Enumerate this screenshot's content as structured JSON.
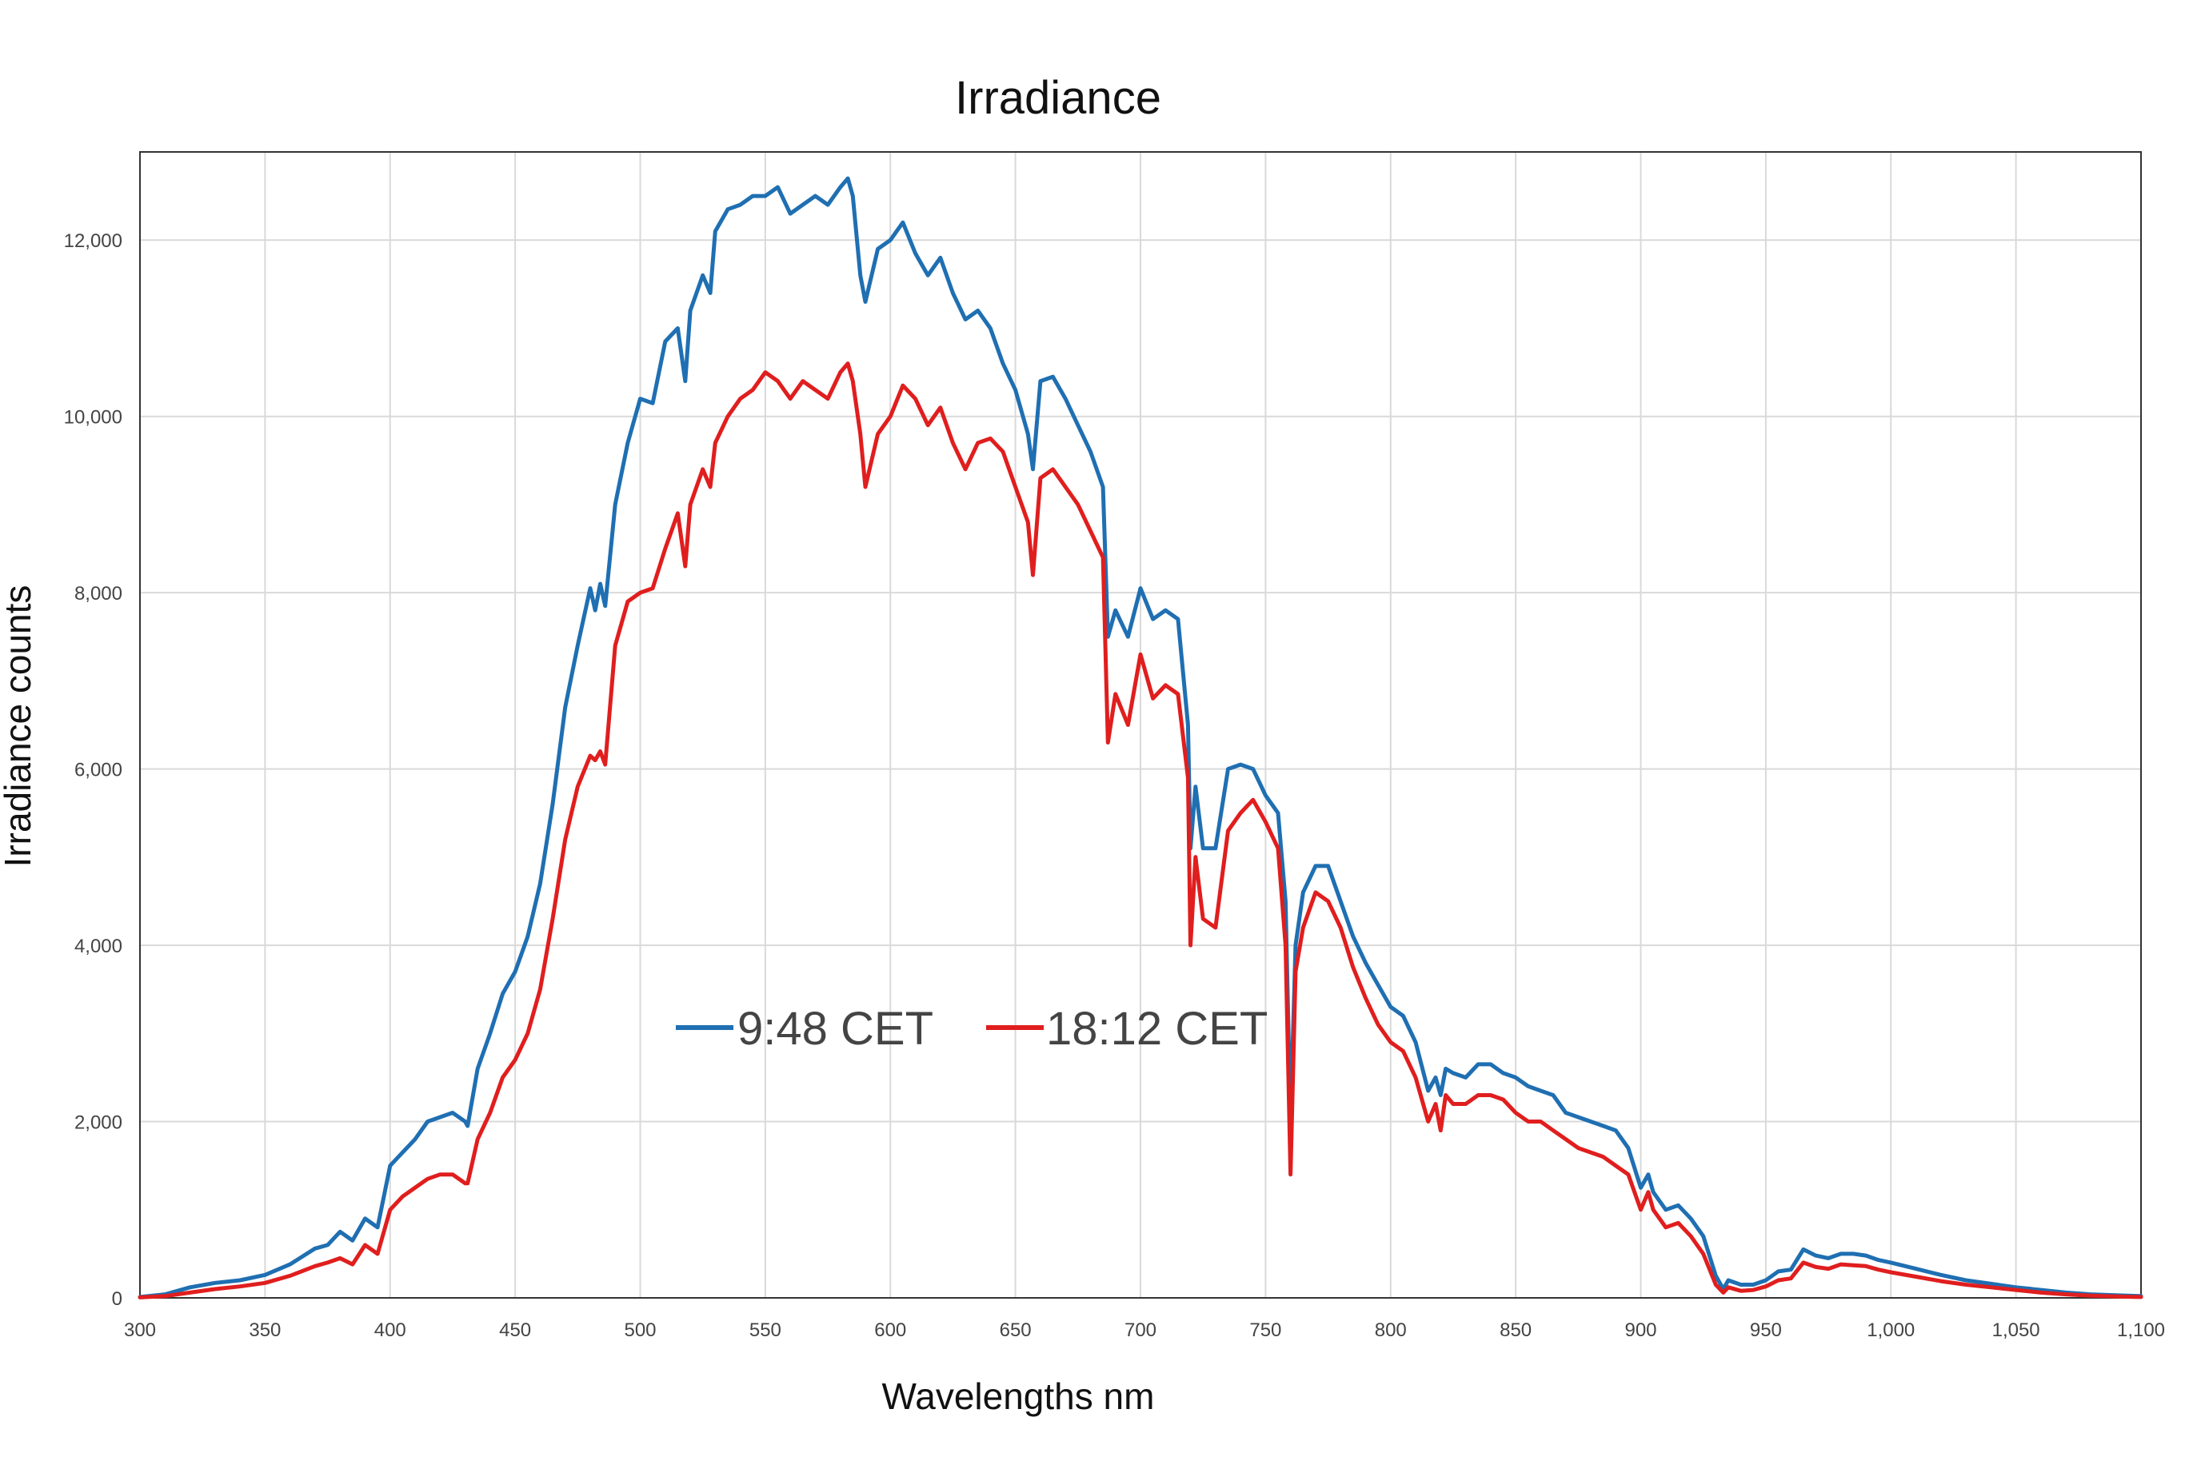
{
  "chart_data": {
    "type": "line",
    "title": "Irradiance",
    "xlabel": "Wavelengths nm",
    "ylabel": "Irradiance counts",
    "xlim": [
      300,
      1100
    ],
    "ylim": [
      0,
      13000
    ],
    "grid": true,
    "legend_placement": "center",
    "x_tick_labels": [
      "300",
      "350",
      "400",
      "450",
      "500",
      "550",
      "600",
      "650",
      "700",
      "750",
      "800",
      "850",
      "900",
      "950",
      "1,000",
      "1,050",
      "1,100"
    ],
    "y_tick_labels": [
      "0",
      "2,000",
      "4,000",
      "6,000",
      "8,000",
      "10,000",
      "12,000"
    ],
    "x": [
      300,
      310,
      320,
      330,
      340,
      350,
      360,
      370,
      375,
      380,
      385,
      390,
      395,
      400,
      405,
      410,
      415,
      420,
      425,
      430,
      431,
      435,
      440,
      445,
      450,
      455,
      460,
      465,
      470,
      475,
      480,
      482,
      484,
      486,
      490,
      495,
      500,
      505,
      510,
      515,
      518,
      520,
      525,
      528,
      530,
      535,
      540,
      545,
      550,
      555,
      560,
      565,
      570,
      575,
      580,
      583,
      585,
      588,
      590,
      595,
      600,
      605,
      610,
      615,
      620,
      625,
      630,
      635,
      640,
      645,
      650,
      655,
      657,
      660,
      665,
      670,
      675,
      680,
      685,
      687,
      690,
      695,
      700,
      705,
      710,
      715,
      719,
      720,
      722,
      725,
      730,
      735,
      740,
      745,
      750,
      755,
      758,
      760,
      762,
      765,
      770,
      775,
      780,
      785,
      790,
      795,
      800,
      805,
      810,
      815,
      818,
      820,
      822,
      825,
      830,
      835,
      840,
      845,
      850,
      855,
      860,
      865,
      870,
      875,
      880,
      885,
      890,
      895,
      900,
      903,
      905,
      910,
      915,
      920,
      925,
      930,
      933,
      935,
      940,
      945,
      950,
      955,
      960,
      965,
      970,
      975,
      980,
      985,
      990,
      995,
      1000,
      1010,
      1020,
      1030,
      1040,
      1050,
      1060,
      1070,
      1080,
      1090,
      1100
    ],
    "series": [
      {
        "name": "9:48 CET",
        "color": "#1f6fb2",
        "values": [
          10,
          40,
          120,
          170,
          200,
          260,
          380,
          560,
          600,
          750,
          650,
          900,
          800,
          1500,
          1650,
          1800,
          2000,
          2050,
          2100,
          2000,
          1950,
          2600,
          3000,
          3450,
          3700,
          4100,
          4700,
          5600,
          6700,
          7400,
          8050,
          7800,
          8100,
          7850,
          9000,
          9700,
          10200,
          10150,
          10850,
          11000,
          10400,
          11200,
          11600,
          11400,
          12100,
          12350,
          12400,
          12500,
          12500,
          12600,
          12300,
          12400,
          12500,
          12400,
          12600,
          12700,
          12500,
          11600,
          11300,
          11900,
          12000,
          12200,
          11850,
          11600,
          11800,
          11400,
          11100,
          11200,
          11000,
          10600,
          10300,
          9800,
          9400,
          10400,
          10450,
          10200,
          9900,
          9600,
          9200,
          7500,
          7800,
          7500,
          8050,
          7700,
          7800,
          7700,
          6500,
          5100,
          5800,
          5100,
          5100,
          6000,
          6050,
          6000,
          5700,
          5500,
          4500,
          2000,
          4000,
          4600,
          4900,
          4900,
          4500,
          4100,
          3800,
          3550,
          3300,
          3200,
          2900,
          2350,
          2500,
          2300,
          2600,
          2550,
          2500,
          2650,
          2650,
          2550,
          2500,
          2400,
          2350,
          2300,
          2100,
          2050,
          2000,
          1950,
          1900,
          1700,
          1250,
          1400,
          1200,
          1000,
          1050,
          900,
          700,
          250,
          100,
          200,
          150,
          150,
          200,
          300,
          320,
          550,
          480,
          450,
          500,
          500,
          480,
          430,
          400,
          330,
          260,
          200,
          160,
          120,
          90,
          60,
          40,
          30,
          20
        ]
      },
      {
        "name": "18:12 CET",
        "color": "#e01e1e",
        "values": [
          5,
          20,
          60,
          100,
          130,
          170,
          250,
          360,
          400,
          450,
          380,
          600,
          500,
          1000,
          1150,
          1250,
          1350,
          1400,
          1400,
          1300,
          1300,
          1800,
          2100,
          2500,
          2700,
          3000,
          3500,
          4300,
          5200,
          5800,
          6150,
          6100,
          6200,
          6050,
          7400,
          7900,
          8000,
          8050,
          8500,
          8900,
          8300,
          9000,
          9400,
          9200,
          9700,
          10000,
          10200,
          10300,
          10500,
          10400,
          10200,
          10400,
          10300,
          10200,
          10500,
          10600,
          10400,
          9800,
          9200,
          9800,
          10000,
          10350,
          10200,
          9900,
          10100,
          9700,
          9400,
          9700,
          9750,
          9600,
          9200,
          8800,
          8200,
          9300,
          9400,
          9200,
          9000,
          8700,
          8400,
          6300,
          6850,
          6500,
          7300,
          6800,
          6950,
          6850,
          5900,
          4000,
          5000,
          4300,
          4200,
          5300,
          5500,
          5650,
          5400,
          5100,
          4000,
          1400,
          3700,
          4200,
          4600,
          4500,
          4200,
          3750,
          3400,
          3100,
          2900,
          2800,
          2500,
          2000,
          2200,
          1900,
          2300,
          2200,
          2200,
          2300,
          2300,
          2250,
          2100,
          2000,
          2000,
          1900,
          1800,
          1700,
          1650,
          1600,
          1500,
          1400,
          1000,
          1200,
          1000,
          800,
          850,
          700,
          500,
          150,
          60,
          120,
          80,
          90,
          130,
          200,
          220,
          400,
          350,
          330,
          380,
          370,
          360,
          320,
          290,
          240,
          190,
          150,
          120,
          90,
          60,
          40,
          25,
          15,
          10
        ]
      }
    ]
  }
}
